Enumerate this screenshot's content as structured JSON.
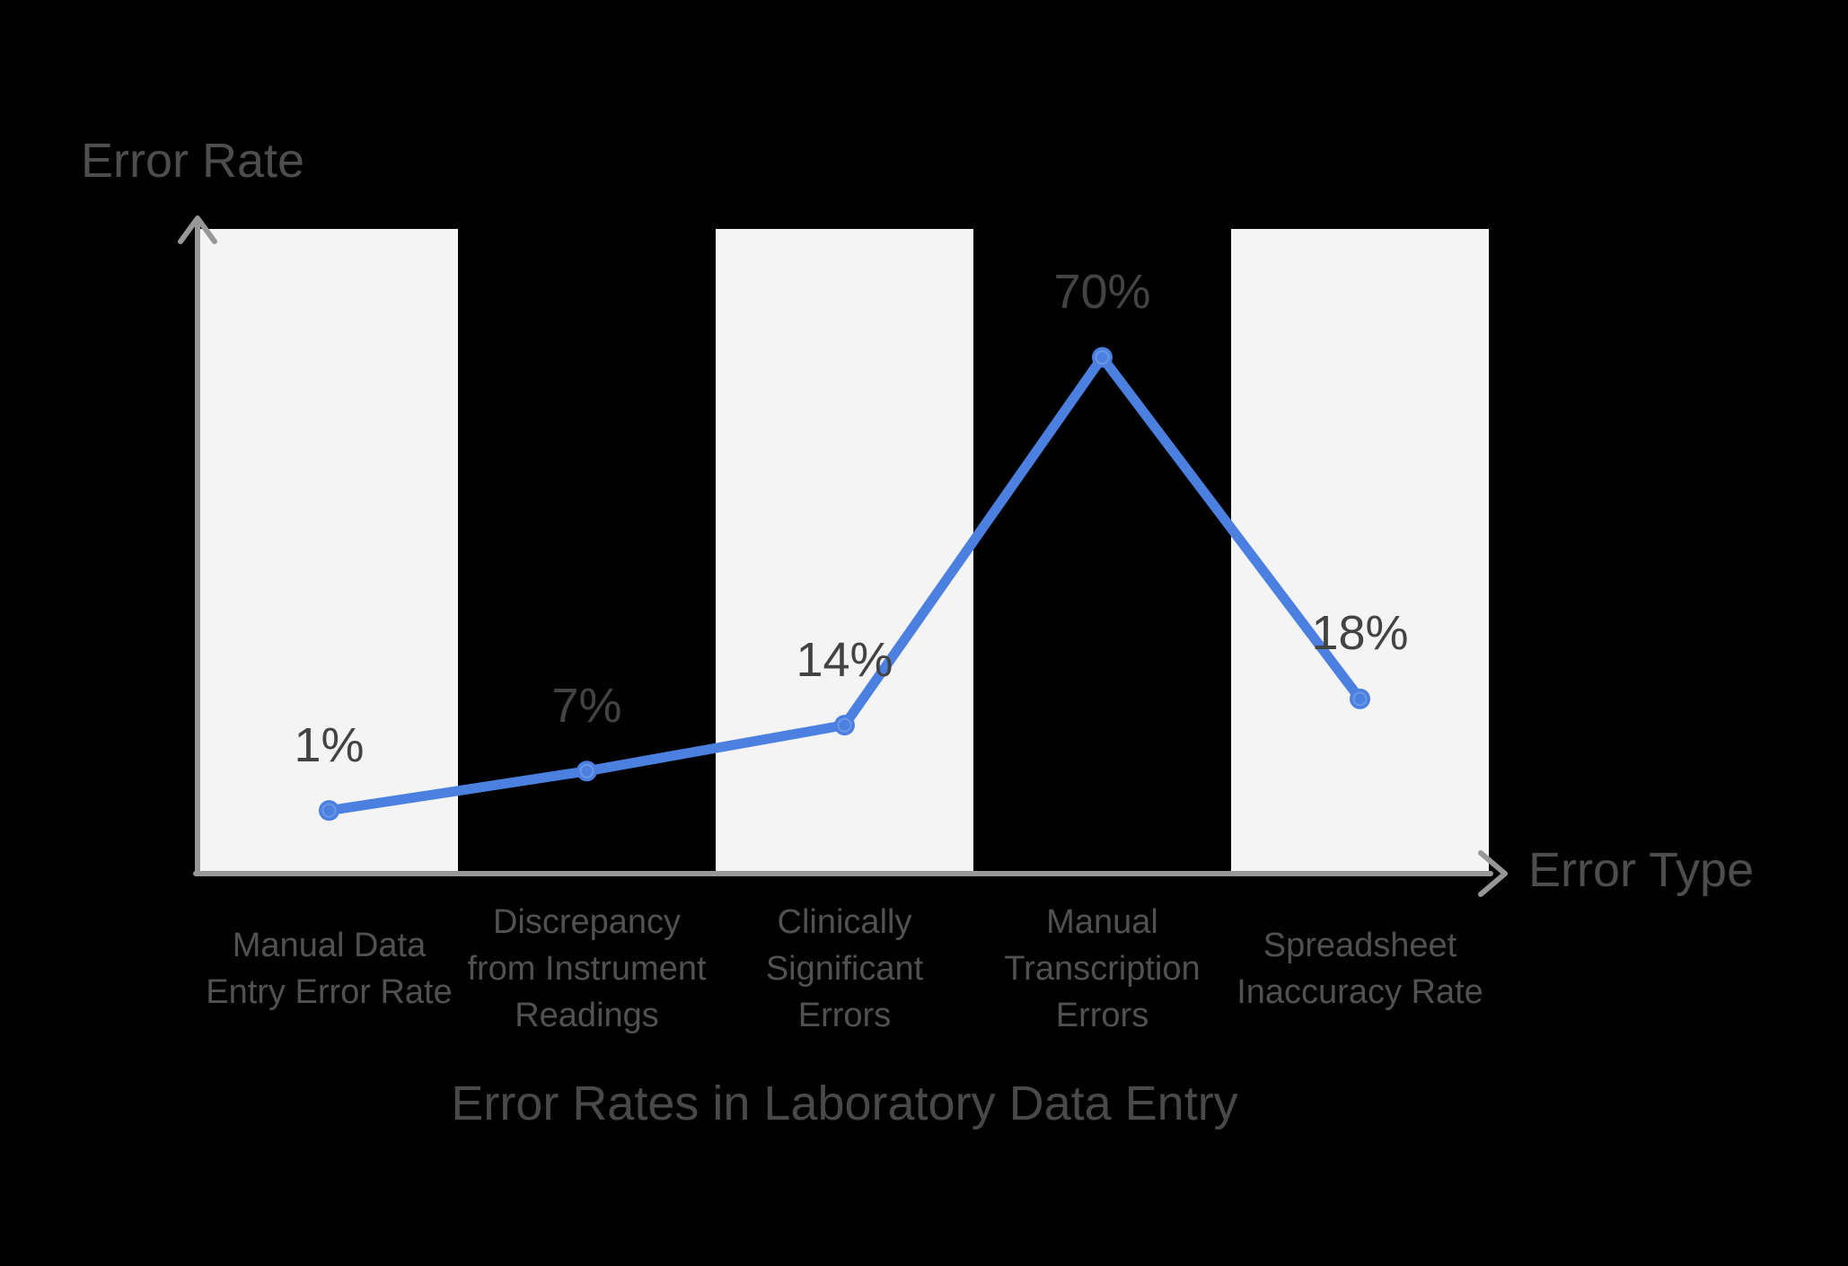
{
  "chart_data": {
    "type": "line",
    "title": "Error Rates in Laboratory Data Entry",
    "xlabel": "Error Type",
    "ylabel": "Error Rate",
    "categories": [
      "Manual Data Entry Error Rate",
      "Discrepancy from Instrument Readings",
      "Clinically Significant Errors",
      "Manual Transcription Errors",
      "Spreadsheet Inaccuracy Rate"
    ],
    "values": [
      1,
      7,
      14,
      70,
      18
    ],
    "value_labels": [
      "1%",
      "7%",
      "14%",
      "70%",
      "18%"
    ],
    "ylim": [
      0,
      90
    ],
    "grid": false,
    "legend": false,
    "band_columns": [
      0,
      2,
      4
    ],
    "colors": {
      "background": "#000000",
      "band": "#f4f4f4",
      "axis": "#979797",
      "line": "#4b80e1",
      "marker": "#4b80e1",
      "value_text": "#434343",
      "category_text": "#515151",
      "title_text": "#494949"
    }
  }
}
